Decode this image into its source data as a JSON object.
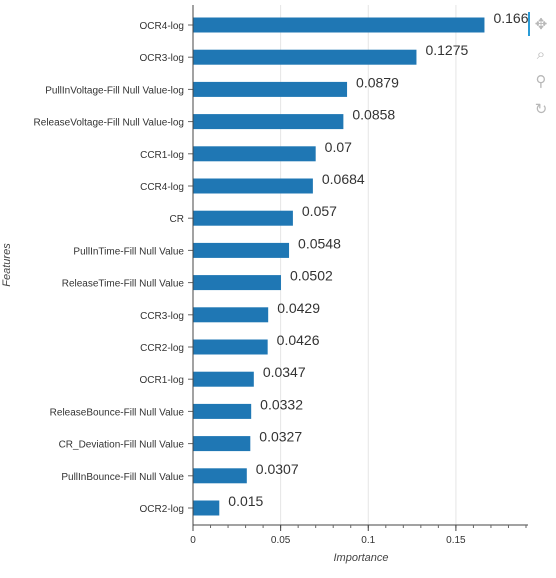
{
  "chart_data": {
    "type": "bar",
    "orientation": "horizontal",
    "xlabel": "Importance",
    "ylabel": "Features",
    "xlim": [
      0,
      0.19
    ],
    "xticks": [
      0,
      0.05,
      0.1,
      0.15
    ],
    "xtick_labels": [
      "0",
      "0.05",
      "0.1",
      "0.15"
    ],
    "grid": true,
    "bar_color": "#1f77b4",
    "categories": [
      "OCR4-log",
      "OCR3-log",
      "PullInVoltage-Fill Null Value-log",
      "ReleaseVoltage-Fill Null Value-log",
      "CCR1-log",
      "CCR4-log",
      "CR",
      "PullInTime-Fill Null Value",
      "ReleaseTime-Fill Null Value",
      "CCR3-log",
      "CCR2-log",
      "OCR1-log",
      "ReleaseBounce-Fill Null Value",
      "CR_Deviation-Fill Null Value",
      "PullInBounce-Fill Null Value",
      "OCR2-log"
    ],
    "values": [
      0.1663,
      0.1275,
      0.0879,
      0.0858,
      0.07,
      0.0684,
      0.057,
      0.0548,
      0.0502,
      0.0429,
      0.0426,
      0.0347,
      0.0332,
      0.0327,
      0.0307,
      0.015
    ],
    "value_labels": [
      "0.166",
      "0.1275",
      "0.0879",
      "0.0858",
      "0.07",
      "0.0684",
      "0.057",
      "0.0548",
      "0.0502",
      "0.0429",
      "0.0426",
      "0.0347",
      "0.0332",
      "0.0327",
      "0.0307",
      "0.015"
    ]
  },
  "toolbar": {
    "pan": "✥",
    "box_zoom": "⌕",
    "wheel_zoom": "⚲",
    "reset": "↻"
  }
}
